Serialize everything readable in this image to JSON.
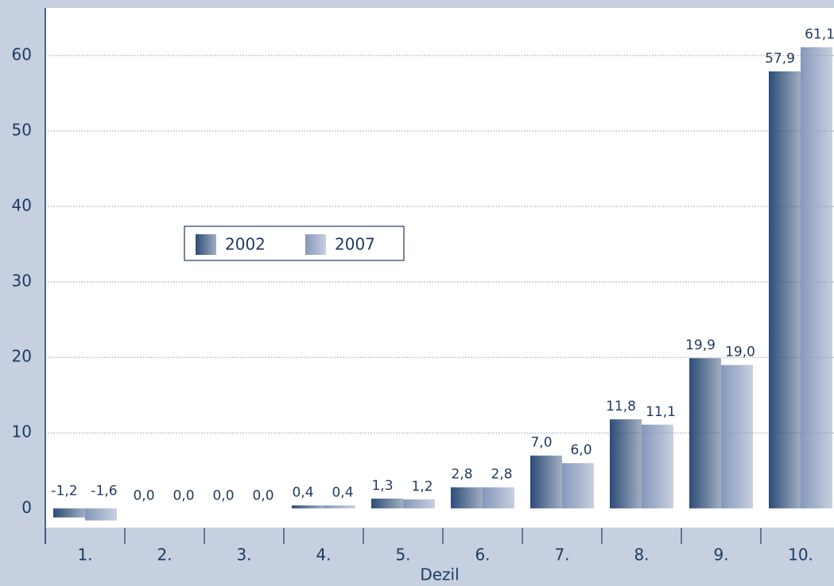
{
  "chart_data": {
    "type": "bar",
    "xlabel": "Dezil",
    "categories": [
      "1.",
      "2.",
      "3.",
      "4.",
      "5.",
      "6.",
      "7.",
      "8.",
      "9.",
      "10."
    ],
    "series": [
      {
        "name": "2002",
        "color": "#2d4c77",
        "values": [
          -1.2,
          0.0,
          0.0,
          0.4,
          1.3,
          2.8,
          7.0,
          11.8,
          19.9,
          57.9
        ],
        "value_labels": [
          "-1,2",
          "0,0",
          "0,0",
          "0,4",
          "1,3",
          "2,8",
          "7,0",
          "11,8",
          "19,9",
          "57,9"
        ]
      },
      {
        "name": "2007",
        "color": "#8597ba",
        "values": [
          -1.6,
          0.0,
          0.0,
          0.4,
          1.2,
          2.8,
          6.0,
          11.1,
          19.0,
          61.1
        ],
        "value_labels": [
          "-1,6",
          "0,0",
          "0,0",
          "0,4",
          "1,2",
          "2,8",
          "6,0",
          "11,1",
          "19,0",
          "61,1"
        ]
      }
    ],
    "ylim": [
      -2.6,
      66.3
    ],
    "yticks": [
      0,
      10,
      20,
      30,
      40,
      50,
      60
    ],
    "grid": true
  }
}
